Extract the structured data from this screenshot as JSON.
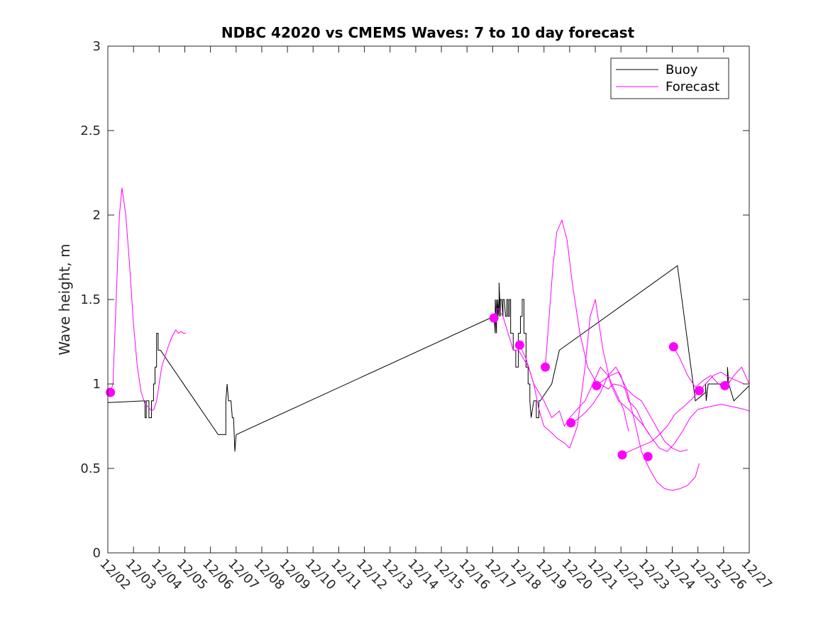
{
  "chart_data": {
    "type": "line",
    "title": "NDBC 42020 vs CMEMS Waves: 7 to 10 day forecast",
    "xlabel": "",
    "ylabel": "Wave height, m",
    "xlim": [
      0,
      25
    ],
    "ylim": [
      0,
      3
    ],
    "x_tick_labels": [
      "12/02",
      "12/03",
      "12/04",
      "12/05",
      "12/06",
      "12/07",
      "12/08",
      "12/09",
      "12/10",
      "12/11",
      "12/12",
      "12/13",
      "12/14",
      "12/15",
      "12/16",
      "12/17",
      "12/18",
      "12/19",
      "12/20",
      "12/21",
      "12/22",
      "12/23",
      "12/24",
      "12/25",
      "12/26",
      "12/27"
    ],
    "y_ticks": [
      0,
      0.5,
      1,
      1.5,
      2,
      2.5,
      3
    ],
    "y_tick_labels": [
      "0",
      "0.5",
      "1",
      "1.5",
      "2",
      "2.5",
      "3"
    ],
    "grid": false,
    "legend": {
      "position": "top-right",
      "entries": [
        "Buoy",
        "Forecast"
      ]
    },
    "colors": {
      "buoy": "#000000",
      "forecast": "#ff00ff",
      "axes": "#262626"
    },
    "series": [
      {
        "name": "Buoy",
        "color": "#000000",
        "x": [
          0.0,
          1.45,
          1.45,
          1.5,
          1.5,
          1.6,
          1.6,
          1.7,
          1.7,
          1.78,
          1.78,
          1.84,
          1.84,
          1.9,
          1.9,
          1.96,
          1.96,
          2.0,
          2.05,
          4.3,
          4.5,
          4.6,
          4.6,
          4.65,
          4.7,
          4.7,
          4.8,
          4.85,
          4.85,
          4.9,
          4.95,
          5.0,
          15.05,
          15.1,
          15.1,
          15.15,
          15.15,
          15.2,
          15.2,
          15.25,
          15.25,
          15.3,
          15.3,
          15.35,
          15.4,
          15.4,
          15.45,
          15.5,
          15.55,
          15.55,
          15.6,
          15.6,
          15.65,
          15.65,
          15.7,
          15.7,
          15.8,
          15.8,
          15.9,
          15.9,
          16.0,
          16.0,
          16.08,
          16.08,
          16.15,
          16.15,
          16.22,
          16.22,
          16.3,
          16.3,
          16.38,
          16.38,
          16.45,
          16.45,
          16.5,
          16.6,
          16.7,
          16.7,
          16.8,
          16.8,
          16.85,
          17.3,
          17.6,
          22.2,
          22.9,
          23.3,
          23.3,
          23.32,
          23.32,
          23.4,
          24.1,
          24.15,
          24.15,
          24.2,
          24.4,
          25.0
        ],
        "y": [
          0.89,
          0.9,
          0.8,
          0.8,
          0.9,
          0.9,
          0.8,
          0.8,
          0.9,
          0.9,
          1.0,
          1.0,
          1.1,
          1.1,
          1.3,
          1.3,
          1.2,
          1.2,
          1.2,
          0.7,
          0.7,
          0.7,
          0.9,
          1.0,
          0.9,
          0.9,
          0.9,
          0.8,
          0.8,
          0.8,
          0.6,
          0.7,
          1.4,
          1.3,
          1.5,
          1.3,
          1.5,
          1.4,
          1.5,
          1.4,
          1.6,
          1.4,
          1.5,
          1.5,
          1.4,
          1.5,
          1.5,
          1.4,
          1.4,
          1.5,
          1.5,
          1.4,
          1.4,
          1.5,
          1.5,
          1.3,
          1.3,
          1.2,
          1.2,
          1.1,
          1.1,
          1.3,
          1.3,
          1.4,
          1.4,
          1.5,
          1.5,
          1.3,
          1.3,
          1.1,
          1.1,
          1.0,
          1.0,
          0.9,
          0.8,
          0.9,
          0.9,
          0.8,
          0.8,
          0.9,
          0.9,
          1.0,
          1.2,
          1.7,
          0.9,
          0.95,
          1.0,
          0.9,
          0.9,
          1.0,
          1.0,
          1.0,
          1.1,
          1.0,
          0.9,
          0.99
        ]
      },
      {
        "name": "Forecast",
        "color": "#ff00ff",
        "segments": [
          {
            "x": [
              0.1,
              0.2,
              0.3,
              0.45,
              0.55,
              0.7,
              0.85,
              1.0,
              1.15,
              1.3,
              1.45,
              1.6,
              1.7,
              1.8,
              1.9,
              2.0,
              2.1,
              2.2,
              2.35,
              2.5,
              2.65,
              2.75,
              2.85,
              2.95,
              3.05
            ],
            "y": [
              0.95,
              1.0,
              1.4,
              2.0,
              2.16,
              2.0,
              1.7,
              1.35,
              1.1,
              0.95,
              0.88,
              0.86,
              0.84,
              0.85,
              0.9,
              1.0,
              1.1,
              1.15,
              1.22,
              1.28,
              1.32,
              1.3,
              1.31,
              1.3,
              1.3
            ]
          },
          {
            "x": [
              15.05,
              15.2,
              15.4,
              15.6,
              15.8,
              16.0,
              16.2,
              16.4,
              16.6,
              16.8,
              17.0,
              17.3,
              17.6,
              17.8,
              18.0,
              18.3,
              18.6,
              18.9,
              19.2,
              19.5,
              19.8,
              20.1,
              20.3
            ],
            "y": [
              1.39,
              1.45,
              1.4,
              1.3,
              1.2,
              1.2,
              1.15,
              1.1,
              1.0,
              0.95,
              0.9,
              0.8,
              0.84,
              0.75,
              0.8,
              0.85,
              0.9,
              1.0,
              1.1,
              1.05,
              0.95,
              0.85,
              0.72
            ]
          },
          {
            "x": [
              16.05,
              16.3,
              16.6,
              16.8,
              17.0,
              17.3,
              17.5,
              17.8,
              18.0,
              18.3,
              18.6,
              18.8,
              19.0,
              19.3,
              19.6,
              19.9,
              20.3,
              20.6,
              20.9,
              21.1
            ],
            "y": [
              1.23,
              1.15,
              1.0,
              0.85,
              0.75,
              0.71,
              0.68,
              0.65,
              0.62,
              0.75,
              1.1,
              1.4,
              1.5,
              1.2,
              1.0,
              0.9,
              0.85,
              0.8,
              0.75,
              0.7
            ]
          },
          {
            "x": [
              17.05,
              17.2,
              17.35,
              17.5,
              17.7,
              17.9,
              18.1,
              18.4,
              18.7,
              19.0,
              19.3,
              19.5,
              19.7,
              20.0,
              20.3,
              20.5,
              20.8,
              21.1,
              21.4,
              21.7,
              22.0,
              22.3,
              22.6
            ],
            "y": [
              1.1,
              1.4,
              1.7,
              1.9,
              1.97,
              1.85,
              1.6,
              1.3,
              1.1,
              1.02,
              0.99,
              0.97,
              1.0,
              0.99,
              0.96,
              0.93,
              0.9,
              0.82,
              0.74,
              0.66,
              0.62,
              0.6,
              0.61
            ]
          },
          {
            "x": [
              18.05,
              18.3,
              18.6,
              18.9,
              19.2,
              19.5,
              19.8,
              20.0,
              20.3,
              20.6,
              20.9,
              21.2,
              21.5,
              21.8,
              22.1,
              22.4,
              22.7,
              23.0,
              23.3,
              23.6,
              23.9,
              24.2,
              24.5,
              24.8,
              25.0
            ],
            "y": [
              0.77,
              0.79,
              0.83,
              0.88,
              0.95,
              1.05,
              1.1,
              1.05,
              0.9,
              0.85,
              0.75,
              0.68,
              0.62,
              0.6,
              0.65,
              0.72,
              0.8,
              0.85,
              0.86,
              0.87,
              0.88,
              0.87,
              0.86,
              0.85,
              0.84
            ]
          },
          {
            "x": [
              19.05,
              19.3,
              19.6,
              19.9,
              20.2,
              20.5,
              20.8,
              21.1,
              21.4,
              21.7,
              22.0,
              22.3,
              22.6,
              22.9,
              23.05
            ],
            "y": [
              0.99,
              1.02,
              1.05,
              1.07,
              0.98,
              0.8,
              0.6,
              0.5,
              0.42,
              0.38,
              0.37,
              0.38,
              0.4,
              0.45,
              0.53
            ]
          },
          {
            "x": [
              20.05,
              20.3,
              20.6,
              20.9,
              21.2,
              21.5,
              21.8,
              22.1,
              22.4,
              22.7,
              23.0,
              23.3,
              23.6,
              23.9,
              24.2,
              24.5,
              24.8,
              25.0
            ],
            "y": [
              0.58,
              0.6,
              0.62,
              0.64,
              0.66,
              0.7,
              0.75,
              0.82,
              0.86,
              0.9,
              0.95,
              1.0,
              1.05,
              1.07,
              1.04,
              1.02,
              1.0,
              1.0
            ]
          },
          {
            "x": [
              22.05,
              22.3,
              22.6,
              22.9,
              23.2,
              23.5,
              23.8,
              24.1,
              24.4,
              24.7,
              25.0
            ],
            "y": [
              1.22,
              1.15,
              1.05,
              0.98,
              1.02,
              1.05,
              1.0,
              0.98,
              1.05,
              1.1,
              1.0
            ]
          }
        ]
      }
    ],
    "markers": {
      "name": "Forecast start",
      "color": "#ff00ff",
      "points": [
        {
          "x": 0.1,
          "y": 0.95
        },
        {
          "x": 15.05,
          "y": 1.39
        },
        {
          "x": 16.05,
          "y": 1.23
        },
        {
          "x": 17.05,
          "y": 1.1
        },
        {
          "x": 18.05,
          "y": 0.77
        },
        {
          "x": 19.05,
          "y": 0.99
        },
        {
          "x": 20.05,
          "y": 0.58
        },
        {
          "x": 21.05,
          "y": 0.57
        },
        {
          "x": 22.05,
          "y": 1.22
        },
        {
          "x": 23.05,
          "y": 0.96
        },
        {
          "x": 24.05,
          "y": 0.99
        }
      ]
    }
  }
}
